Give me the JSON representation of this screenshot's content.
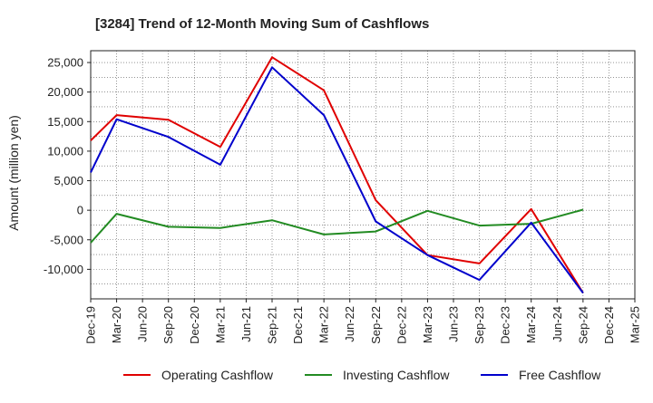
{
  "chart_data": {
    "type": "line",
    "title": "[3284]  Trend of 12-Month Moving Sum of Cashflows",
    "xlabel": "",
    "ylabel": "Amount (million yen)",
    "categories": [
      "Dec-19",
      "Mar-20",
      "Jun-20",
      "Sep-20",
      "Dec-20",
      "Mar-21",
      "Jun-21",
      "Sep-21",
      "Dec-21",
      "Mar-22",
      "Jun-22",
      "Sep-22",
      "Dec-22",
      "Mar-23",
      "Jun-23",
      "Sep-23",
      "Dec-23",
      "Mar-24",
      "Jun-24",
      "Sep-24",
      "Dec-24",
      "Mar-25"
    ],
    "ylim": [
      -15000,
      27000
    ],
    "yticks": [
      25000,
      20000,
      15000,
      10000,
      5000,
      0,
      -5000,
      -10000
    ],
    "ytick_labels": [
      "25,000",
      "20,000",
      "15,000",
      "10,000",
      "5,000",
      "0",
      "-5,000",
      "-10,000"
    ],
    "grid": true,
    "legend_position": "bottom",
    "series": [
      {
        "name": "Operating Cashflow",
        "color": "#e00000",
        "values": [
          11800,
          16100,
          null,
          15300,
          null,
          10700,
          null,
          25900,
          null,
          20300,
          null,
          1700,
          null,
          -7600,
          null,
          -9000,
          null,
          200,
          null,
          -14000,
          null,
          null
        ]
      },
      {
        "name": "Investing Cashflow",
        "color": "#228b22",
        "values": [
          -5500,
          -600,
          null,
          -2800,
          null,
          -3000,
          null,
          -1700,
          null,
          -4100,
          null,
          -3600,
          null,
          -100,
          null,
          -2600,
          null,
          -2300,
          null,
          100,
          null,
          null
        ]
      },
      {
        "name": "Free Cashflow",
        "color": "#0000cc",
        "values": [
          6400,
          15400,
          null,
          12400,
          null,
          7700,
          null,
          24200,
          null,
          16100,
          null,
          -1900,
          null,
          -7600,
          null,
          -11800,
          null,
          -2100,
          null,
          -14000,
          null,
          null
        ]
      }
    ]
  }
}
